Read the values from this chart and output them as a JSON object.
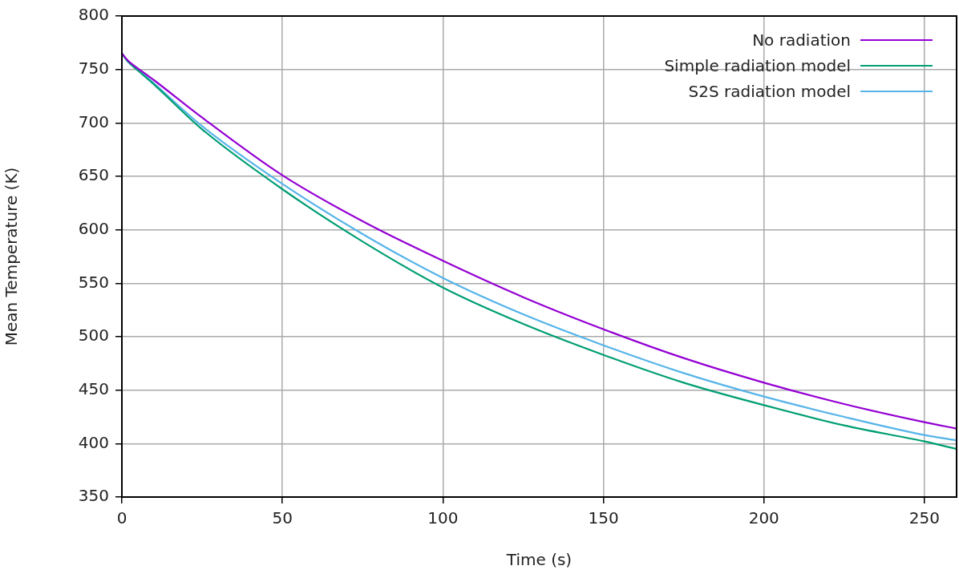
{
  "chart_data": {
    "type": "line",
    "xlabel": "Time (s)",
    "ylabel": "Mean Temperature (K)",
    "xlim": [
      0,
      260
    ],
    "xticks": [
      0,
      50,
      100,
      150,
      200,
      250
    ],
    "ylim": [
      350,
      800
    ],
    "yticks": [
      350,
      400,
      450,
      500,
      550,
      600,
      650,
      700,
      750,
      800
    ],
    "grid": true,
    "legend": "top right",
    "marker": "none",
    "line_style": "solid",
    "x": [
      0,
      2,
      5,
      10,
      25,
      50,
      75,
      100,
      125,
      150,
      175,
      200,
      225,
      250,
      260
    ],
    "series": [
      {
        "name": "No radiation",
        "color": "#9400d3",
        "values": [
          765,
          758,
          751,
          740,
          705,
          651,
          608,
          571,
          537,
          507,
          480,
          457,
          437,
          420,
          414
        ]
      },
      {
        "name": "Simple radiation model",
        "color": "#009e73",
        "values": [
          765,
          757,
          749,
          736,
          694,
          638,
          589,
          546,
          512,
          483,
          457,
          436,
          417,
          402,
          395
        ]
      },
      {
        "name": "S2S radiation model",
        "color": "#56b4e9",
        "values": [
          765,
          757,
          750,
          737,
          697,
          643,
          596,
          555,
          521,
          492,
          466,
          444,
          425,
          408,
          403
        ]
      }
    ]
  }
}
